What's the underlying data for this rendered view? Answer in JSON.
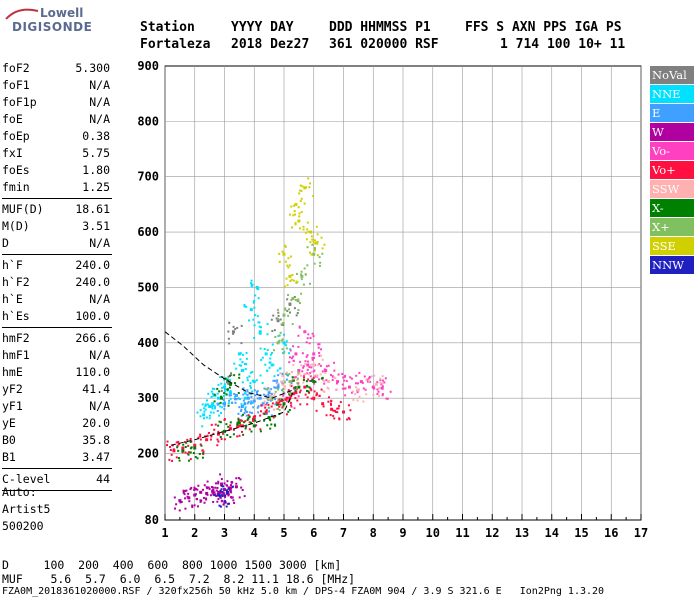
{
  "logo": {
    "top": "Lowell",
    "main": "DIGISONDE"
  },
  "header": {
    "labels": [
      "Station",
      "YYYY DAY",
      "DDD HHMMSS P1",
      "FFS S AXN PPS IGA PS"
    ],
    "values": [
      "Fortaleza",
      "2018 Dez27",
      "361 020000 RSF",
      "1 714 100 10+ 11"
    ]
  },
  "params": [
    {
      "name": "foF2",
      "value": "5.300"
    },
    {
      "name": "foF1",
      "value": "N/A"
    },
    {
      "name": "foF1p",
      "value": "N/A"
    },
    {
      "name": "foE",
      "value": "N/A"
    },
    {
      "name": "foEp",
      "value": "0.38"
    },
    {
      "name": "fxI",
      "value": "5.75"
    },
    {
      "name": "foEs",
      "value": "1.80"
    },
    {
      "name": "fmin",
      "value": "1.25"
    },
    {
      "sep": true
    },
    {
      "name": "MUF(D)",
      "value": "18.61"
    },
    {
      "name": "M(D)",
      "value": "3.51"
    },
    {
      "name": "D",
      "value": "N/A"
    },
    {
      "sep": true
    },
    {
      "name": "h`F",
      "value": "240.0"
    },
    {
      "name": "h`F2",
      "value": "240.0"
    },
    {
      "name": "h`E",
      "value": "N/A"
    },
    {
      "name": "h`Es",
      "value": "100.0"
    },
    {
      "sep": true
    },
    {
      "name": "hmF2",
      "value": "266.6"
    },
    {
      "name": "hmF1",
      "value": "N/A"
    },
    {
      "name": "hmE",
      "value": "110.0"
    },
    {
      "name": "yF2",
      "value": "41.4"
    },
    {
      "name": "yF1",
      "value": "N/A"
    },
    {
      "name": "yE",
      "value": "20.0"
    },
    {
      "name": "B0",
      "value": "35.8"
    },
    {
      "name": "B1",
      "value": "3.47"
    },
    {
      "sep": true
    },
    {
      "name": "C-level",
      "value": "44"
    },
    {
      "sep": true
    }
  ],
  "auto": {
    "line1": "Auto:",
    "line2": "Artist5",
    "line3": "500200"
  },
  "legend": [
    {
      "label": "NoVal",
      "color": "#808080"
    },
    {
      "label": "NNE",
      "color": "#00e0ff"
    },
    {
      "label": "E",
      "color": "#3fa0ff"
    },
    {
      "label": "W",
      "color": "#b000a0"
    },
    {
      "label": "Vo-",
      "color": "#ff40c0"
    },
    {
      "label": "Vo+",
      "color": "#ff1040"
    },
    {
      "label": "SSW",
      "color": "#ffb0b0"
    },
    {
      "label": "X-",
      "color": "#008000"
    },
    {
      "label": "X+",
      "color": "#80c060"
    },
    {
      "label": "SSE",
      "color": "#d0d000"
    },
    {
      "label": "NNW",
      "color": "#2020c0"
    }
  ],
  "footer": {
    "d_row": "D     100  200  400  600  800 1000 1500 3000 [km]",
    "muf_row": "MUF    5.6  5.7  6.0  6.5  7.2  8.2 11.1 18.6 [MHz]",
    "file_row": "FZA0M_2018361020000.RSF / 320fx256h 50 kHz 5.0 km / DPS-4 FZA0M 904 / 3.9 S 321.6 E   Ion2Png 1.3.20"
  },
  "chart_data": {
    "type": "scatter",
    "title": "",
    "xlabel": "",
    "ylabel": "",
    "x_ticks": [
      1,
      2,
      3,
      4,
      5,
      6,
      7,
      8,
      9,
      10,
      11,
      12,
      13,
      14,
      15,
      16,
      17
    ],
    "y_ticks": [
      80,
      200,
      300,
      400,
      500,
      600,
      700,
      800,
      900
    ],
    "xlim": [
      1,
      17
    ],
    "ylim": [
      80,
      900
    ],
    "grid": true,
    "legend_position": "right",
    "series": [
      {
        "name": "NoVal",
        "points": [
          [
            3.1,
            330
          ],
          [
            3.3,
            420
          ],
          [
            4.8,
            440
          ],
          [
            5.2,
            470
          ]
        ]
      },
      {
        "name": "NNE",
        "points": [
          [
            2.5,
            285
          ],
          [
            2.8,
            300
          ],
          [
            3.0,
            320
          ],
          [
            3.2,
            310
          ],
          [
            3.5,
            380
          ],
          [
            3.6,
            350
          ],
          [
            4.0,
            330
          ],
          [
            4.2,
            420
          ],
          [
            4.4,
            380
          ],
          [
            4.6,
            360
          ],
          [
            5.0,
            400
          ],
          [
            2.3,
            270
          ],
          [
            2.6,
            290
          ],
          [
            3.9,
            460
          ],
          [
            4.1,
            500
          ],
          [
            3.7,
            300
          ]
        ]
      },
      {
        "name": "E",
        "points": [
          [
            3.0,
            290
          ],
          [
            3.4,
            305
          ],
          [
            3.8,
            300
          ],
          [
            4.0,
            295
          ],
          [
            4.2,
            300
          ],
          [
            4.5,
            310
          ],
          [
            4.8,
            320
          ],
          [
            5.0,
            330
          ],
          [
            3.6,
            285
          ],
          [
            4.3,
            290
          ]
        ]
      },
      {
        "name": "W",
        "points": [
          [
            1.5,
            115
          ],
          [
            1.8,
            120
          ],
          [
            2.0,
            125
          ],
          [
            2.2,
            130
          ],
          [
            2.4,
            128
          ],
          [
            2.6,
            132
          ],
          [
            2.8,
            130
          ],
          [
            3.0,
            135
          ],
          [
            3.2,
            138
          ],
          [
            3.4,
            140
          ],
          [
            2.9,
            145
          ],
          [
            3.1,
            128
          ]
        ]
      },
      {
        "name": "Vo-",
        "points": [
          [
            5.2,
            300
          ],
          [
            5.5,
            350
          ],
          [
            5.8,
            360
          ],
          [
            6.1,
            340
          ],
          [
            6.4,
            350
          ],
          [
            6.8,
            330
          ],
          [
            7.2,
            320
          ],
          [
            7.6,
            330
          ],
          [
            8.0,
            320
          ],
          [
            8.3,
            318
          ],
          [
            6.0,
            380
          ],
          [
            5.7,
            420
          ],
          [
            5.4,
            380
          ]
        ]
      },
      {
        "name": "Vo+",
        "points": [
          [
            1.3,
            205
          ],
          [
            1.6,
            210
          ],
          [
            2.0,
            215
          ],
          [
            2.4,
            225
          ],
          [
            2.8,
            235
          ],
          [
            3.2,
            245
          ],
          [
            3.6,
            250
          ],
          [
            4.0,
            265
          ],
          [
            4.4,
            275
          ],
          [
            4.8,
            290
          ],
          [
            5.1,
            300
          ],
          [
            5.4,
            310
          ],
          [
            5.7,
            320
          ],
          [
            6.0,
            300
          ],
          [
            6.3,
            290
          ],
          [
            6.6,
            280
          ],
          [
            7.0,
            275
          ]
        ]
      },
      {
        "name": "SSW",
        "points": [
          [
            4.5,
            300
          ],
          [
            5.0,
            330
          ],
          [
            5.5,
            345
          ],
          [
            6.0,
            360
          ],
          [
            6.5,
            330
          ],
          [
            7.5,
            315
          ],
          [
            8.1,
            325
          ]
        ]
      },
      {
        "name": "X-",
        "points": [
          [
            1.6,
            205
          ],
          [
            2.0,
            210
          ],
          [
            3.0,
            240
          ],
          [
            3.5,
            255
          ],
          [
            4.0,
            250
          ],
          [
            4.5,
            265
          ],
          [
            5.0,
            290
          ],
          [
            5.5,
            320
          ],
          [
            6.0,
            330
          ],
          [
            3.2,
            325
          ],
          [
            2.9,
            300
          ]
        ]
      },
      {
        "name": "X+",
        "points": [
          [
            4.8,
            400
          ],
          [
            5.0,
            450
          ],
          [
            5.3,
            480
          ],
          [
            5.6,
            520
          ],
          [
            6.0,
            560
          ],
          [
            4.6,
            300
          ],
          [
            5.2,
            330
          ]
        ]
      },
      {
        "name": "SSE",
        "points": [
          [
            5.0,
            560
          ],
          [
            5.5,
            620
          ],
          [
            5.9,
            600
          ],
          [
            6.1,
            580
          ],
          [
            5.4,
            650
          ],
          [
            5.7,
            680
          ],
          [
            5.2,
            520
          ]
        ]
      },
      {
        "name": "NNW",
        "points": [
          [
            3.1,
            130
          ],
          [
            2.8,
            125
          ]
        ]
      }
    ]
  }
}
